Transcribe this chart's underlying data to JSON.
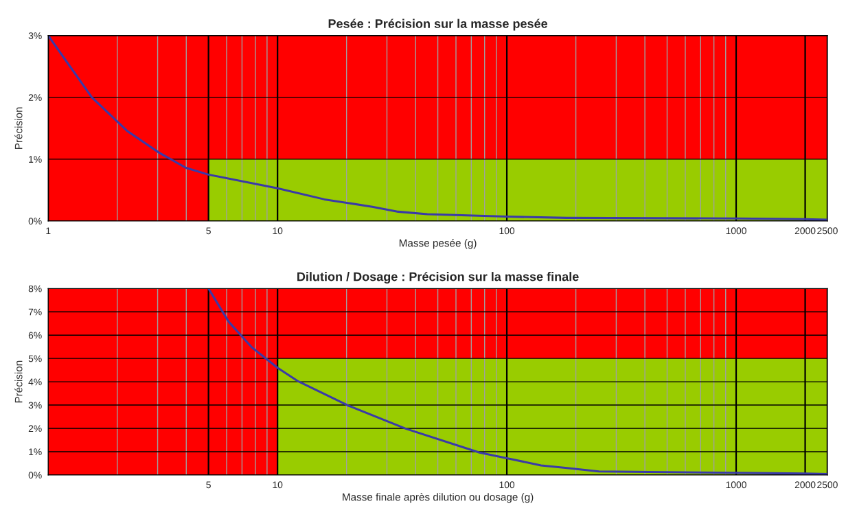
{
  "chart_data": [
    {
      "type": "line",
      "title": "Pesée : Précision sur la masse pesée",
      "xlabel": "Masse pesée (g)",
      "ylabel": "Précision",
      "log": "x",
      "grid": true,
      "xlim": [
        1,
        2500
      ],
      "xticks": [
        1,
        5,
        10,
        100,
        1000,
        2000,
        2500
      ],
      "ylim": [
        0,
        3
      ],
      "yticks": [
        {
          "value": 0,
          "label": "0%"
        },
        {
          "value": 1,
          "label": "1%"
        },
        {
          "value": 2,
          "label": "2%"
        },
        {
          "value": 3,
          "label": "3%"
        }
      ],
      "bands": [
        {
          "axis": "y",
          "from": 0,
          "to": 3,
          "color": "#ff0000"
        }
      ],
      "series": [
        {
          "type": "area",
          "color": "#99cc00",
          "x": [
            5,
            2500
          ],
          "values": [
            1,
            1
          ]
        },
        {
          "color": "#3a3aa8",
          "x": [
            1,
            1.55,
            2.22,
            3.06,
            3.99,
            5,
            10,
            16,
            25.9,
            33.6,
            45,
            100,
            182,
            1000,
            2000,
            2500
          ],
          "values": [
            3.0,
            2.0,
            1.45,
            1.1,
            0.86,
            0.75,
            0.53,
            0.35,
            0.23,
            0.15,
            0.11,
            0.07,
            0.05,
            0.04,
            0.03,
            0.02
          ]
        }
      ]
    },
    {
      "type": "line",
      "title": "Dilution / Dosage : Précision sur la masse finale",
      "xlabel": "Masse finale après dilution ou dosage (g)",
      "ylabel": "Précision",
      "log": "x",
      "grid": true,
      "xlim": [
        1,
        2500
      ],
      "xticks": [
        5,
        10,
        100,
        1000,
        2000,
        2500
      ],
      "ylim": [
        0,
        8
      ],
      "yticks": [
        {
          "value": 0,
          "label": "0%"
        },
        {
          "value": 1,
          "label": "1%"
        },
        {
          "value": 2,
          "label": "2%"
        },
        {
          "value": 3,
          "label": "3%"
        },
        {
          "value": 4,
          "label": "4%"
        },
        {
          "value": 5,
          "label": "5%"
        },
        {
          "value": 6,
          "label": "6%"
        },
        {
          "value": 7,
          "label": "7%"
        },
        {
          "value": 8,
          "label": "8%"
        }
      ],
      "bands": [
        {
          "axis": "y",
          "from": 0,
          "to": 8,
          "color": "#ff0000"
        }
      ],
      "series": [
        {
          "type": "area",
          "color": "#99cc00",
          "x": [
            10,
            2500
          ],
          "values": [
            5,
            5
          ]
        },
        {
          "color": "#3a3aa8",
          "x": [
            5,
            6.13,
            7.74,
            10,
            12.3,
            20.3,
            36.2,
            76,
            100,
            141,
            183,
            252,
            1000,
            2000,
            2500
          ],
          "values": [
            8.0,
            6.57,
            5.47,
            4.6,
            4.02,
            2.98,
            1.99,
            0.96,
            0.72,
            0.41,
            0.3,
            0.15,
            0.09,
            0.06,
            0.04
          ]
        }
      ]
    }
  ]
}
